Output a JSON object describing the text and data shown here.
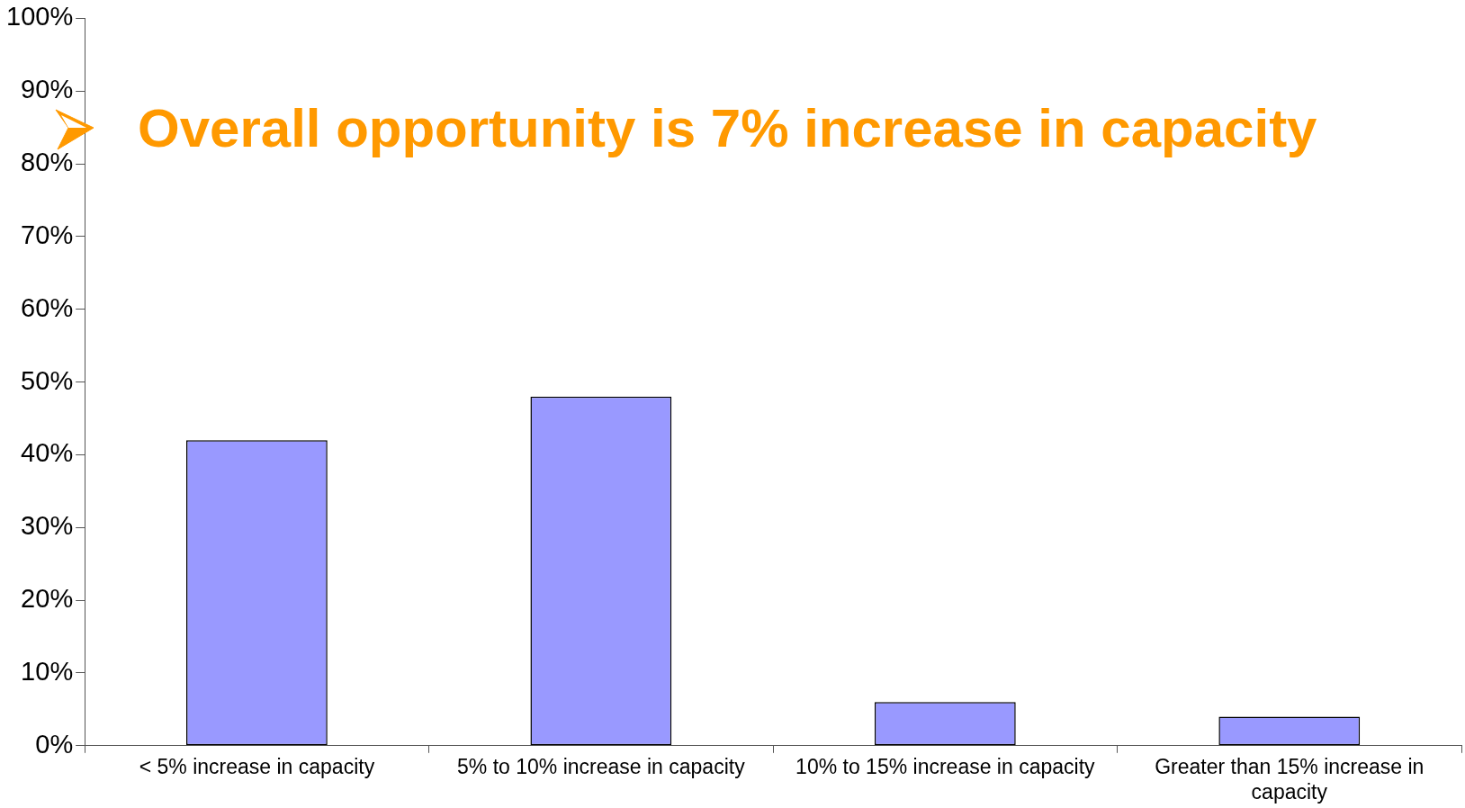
{
  "chart_data": {
    "type": "bar",
    "categories": [
      "< 5% increase in capacity",
      "5% to 10% increase in capacity",
      "10% to 15% increase in capacity",
      "Greater than 15% increase in capacity"
    ],
    "values": [
      42,
      48,
      6,
      4
    ],
    "color": "#9999ff",
    "ylim": [
      0,
      100
    ],
    "yticks": [
      {
        "value": 0,
        "label": "0%"
      },
      {
        "value": 10,
        "label": "10%"
      },
      {
        "value": 20,
        "label": "20%"
      },
      {
        "value": 30,
        "label": "30%"
      },
      {
        "value": 40,
        "label": "40%"
      },
      {
        "value": 50,
        "label": "50%"
      },
      {
        "value": 60,
        "label": "60%"
      },
      {
        "value": 70,
        "label": "70%"
      },
      {
        "value": 80,
        "label": "80%"
      },
      {
        "value": 90,
        "label": "90%"
      },
      {
        "value": 100,
        "label": "100%"
      }
    ],
    "grid": false,
    "legend": false,
    "annotations": [
      "Overall opportunity is 7% increase in capacity"
    ]
  }
}
